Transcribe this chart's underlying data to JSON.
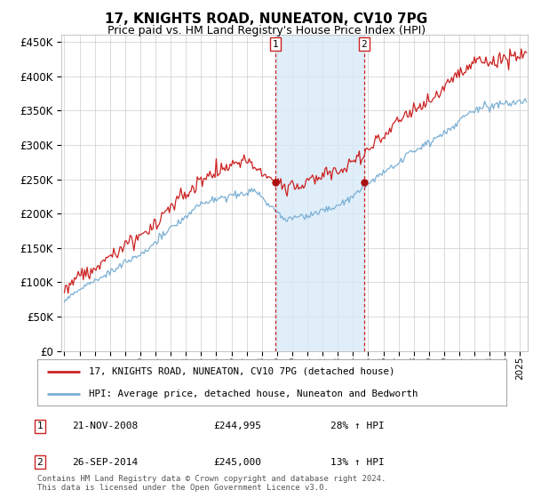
{
  "title": "17, KNIGHTS ROAD, NUNEATON, CV10 7PG",
  "subtitle": "Price paid vs. HM Land Registry's House Price Index (HPI)",
  "ylim": [
    0,
    460000
  ],
  "yticks": [
    0,
    50000,
    100000,
    150000,
    200000,
    250000,
    300000,
    350000,
    400000,
    450000
  ],
  "hpi_color": "#7bafd4",
  "price_color": "#cc2222",
  "marker_color": "#aa1111",
  "vline_color": "#cc2222",
  "shade_color": "#d8eaf8",
  "transaction1": {
    "date_num": 2008.9,
    "price": 244995,
    "label": "1"
  },
  "transaction2": {
    "date_num": 2014.73,
    "price": 245000,
    "label": "2"
  },
  "legend_entries": [
    "17, KNIGHTS ROAD, NUNEATON, CV10 7PG (detached house)",
    "HPI: Average price, detached house, Nuneaton and Bedworth"
  ],
  "table_rows": [
    [
      "1",
      "21-NOV-2008",
      "£244,995",
      "28% ↑ HPI"
    ],
    [
      "2",
      "26-SEP-2014",
      "£245,000",
      "13% ↑ HPI"
    ]
  ],
  "footnote": "Contains HM Land Registry data © Crown copyright and database right 2024.\nThis data is licensed under the Open Government Licence v3.0.",
  "xmin": 1994.8,
  "xmax": 2025.5,
  "background_color": "#ffffff",
  "grid_color": "#cccccc"
}
